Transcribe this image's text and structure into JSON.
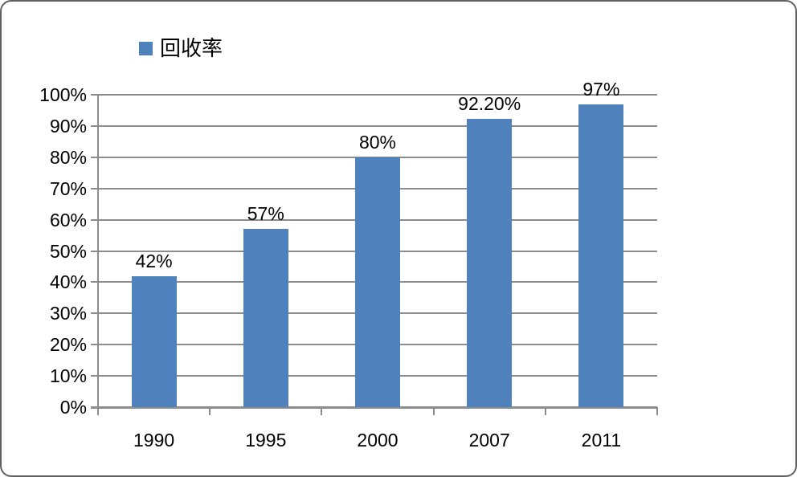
{
  "chart_data": {
    "type": "bar",
    "title": "",
    "legend": "回收率",
    "legend_position": "top-left-inner",
    "categories": [
      "1990",
      "1995",
      "2000",
      "2007",
      "2011"
    ],
    "values": [
      42,
      57,
      80,
      92.2,
      97
    ],
    "data_labels": [
      "42%",
      "57%",
      "80%",
      "92.20%",
      "97%"
    ],
    "xlabel": "",
    "ylabel": "",
    "ylim": [
      0,
      100
    ],
    "y_tick_interval": 10,
    "y_tick_labels": [
      "0%",
      "10%",
      "20%",
      "30%",
      "40%",
      "50%",
      "60%",
      "70%",
      "80%",
      "90%",
      "100%"
    ],
    "grid": "horizontal",
    "colors": {
      "bar": "#4F81BD",
      "gridline": "#8C8C8C",
      "axis": "#8C8C8C",
      "text": "#000000",
      "border": "#606060",
      "background": "#FFFFFF"
    }
  }
}
